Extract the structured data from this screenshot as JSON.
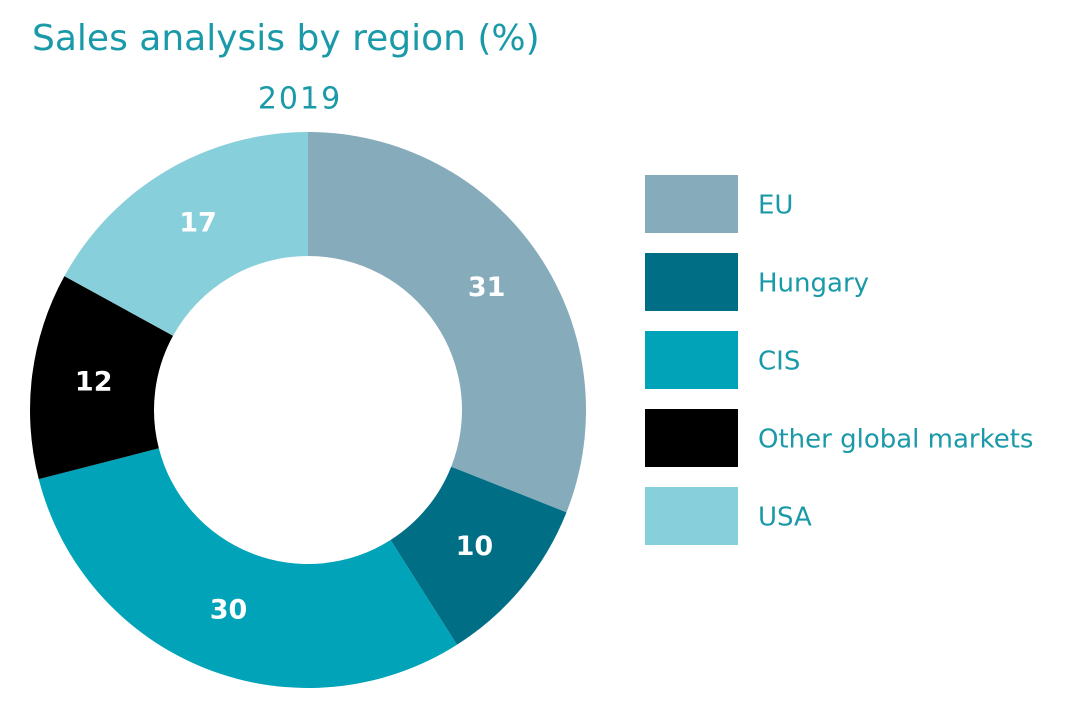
{
  "chart_data": {
    "type": "donut",
    "title": "Sales analysis by region (%)",
    "subtitle": "2019",
    "categories": [
      "EU",
      "Hungary",
      "CIS",
      "Other global markets",
      "USA"
    ],
    "values": [
      31,
      10,
      30,
      12,
      17
    ],
    "colors": [
      "#86abba",
      "#006e84",
      "#00a3b8",
      "#000000",
      "#88cfdc"
    ],
    "legend": "right"
  }
}
